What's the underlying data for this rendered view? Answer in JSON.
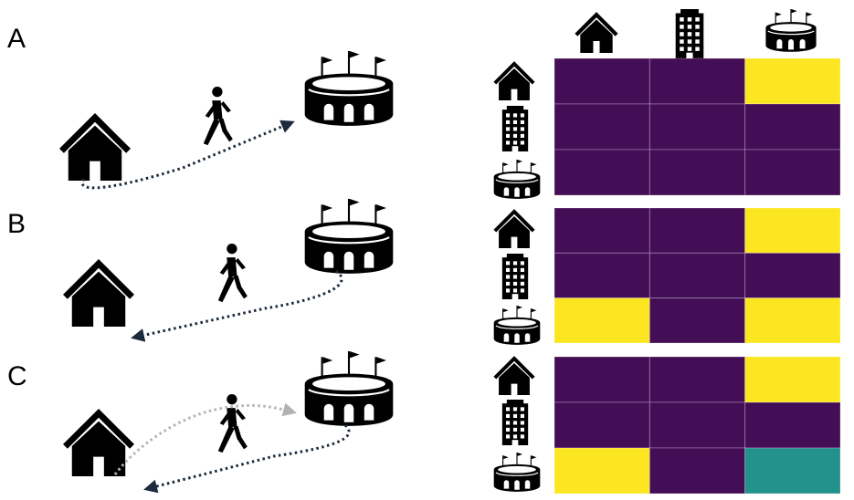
{
  "panels": [
    {
      "label": "A",
      "matrix": [
        [
          0,
          0,
          1
        ],
        [
          0,
          0,
          0
        ],
        [
          0,
          0,
          0
        ]
      ]
    },
    {
      "label": "B",
      "matrix": [
        [
          0,
          0,
          1
        ],
        [
          0,
          0,
          0
        ],
        [
          1,
          0,
          1
        ]
      ]
    },
    {
      "label": "C",
      "matrix": [
        [
          0,
          0,
          1
        ],
        [
          0,
          0,
          0
        ],
        [
          1,
          0,
          0.5
        ]
      ]
    }
  ],
  "matrix_axes": [
    "house-icon",
    "office-building-icon",
    "stadium-icon"
  ],
  "colors": {
    "low": "#440e57",
    "mid": "#23918c",
    "high": "#fce621"
  }
}
